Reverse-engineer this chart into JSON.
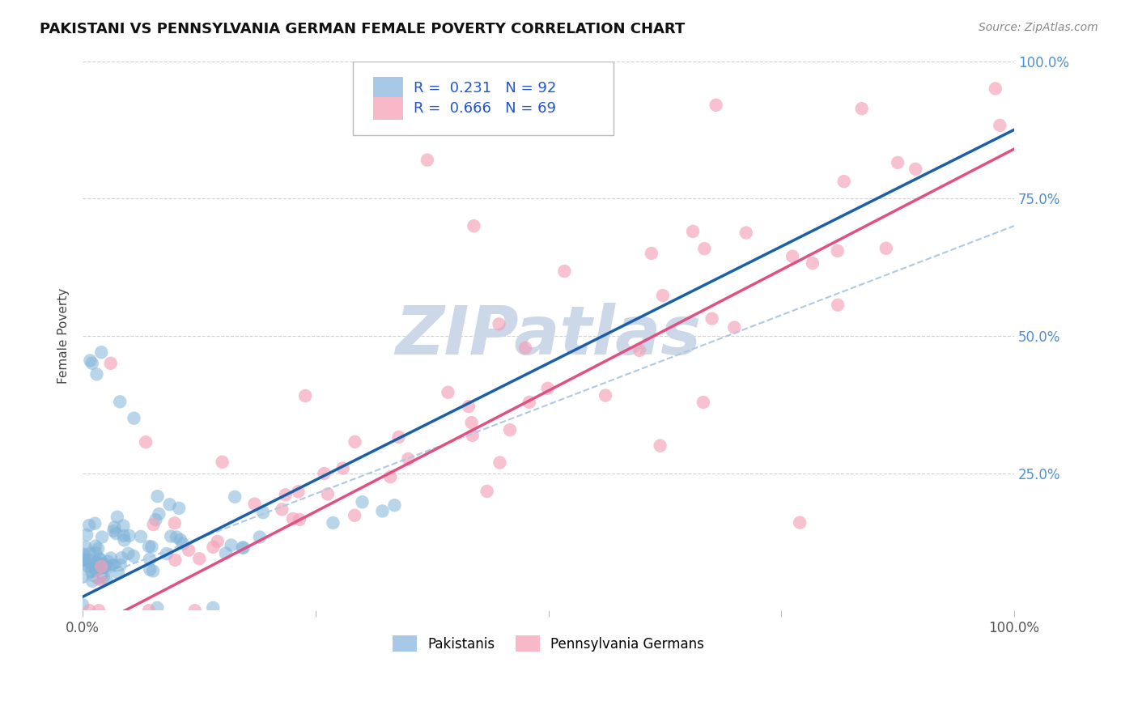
{
  "title": "PAKISTANI VS PENNSYLVANIA GERMAN FEMALE POVERTY CORRELATION CHART",
  "source": "Source: ZipAtlas.com",
  "ylabel": "Female Poverty",
  "xlim": [
    0,
    1
  ],
  "ylim": [
    0,
    1
  ],
  "ytick_labels": [
    "",
    "25.0%",
    "50.0%",
    "75.0%",
    "100.0%"
  ],
  "ytick_values": [
    0,
    0.25,
    0.5,
    0.75,
    1.0
  ],
  "pakistani_color": "#7fb3d8",
  "pa_german_color": "#f4a0b8",
  "pakistani_line_color": "#1a5fa8",
  "pa_german_line_color": "#e05080",
  "dashed_line_color": "#b0c8e0",
  "background_color": "#ffffff",
  "grid_color": "#cccccc",
  "watermark_color": "#ccd8e8",
  "title_fontsize": 13,
  "source_fontsize": 10,
  "legend_pak_color": "#a8c8e8",
  "legend_pag_color": "#f8b8c8",
  "legend_text_color": "#2255cc",
  "right_tick_color": "#4a90d9"
}
